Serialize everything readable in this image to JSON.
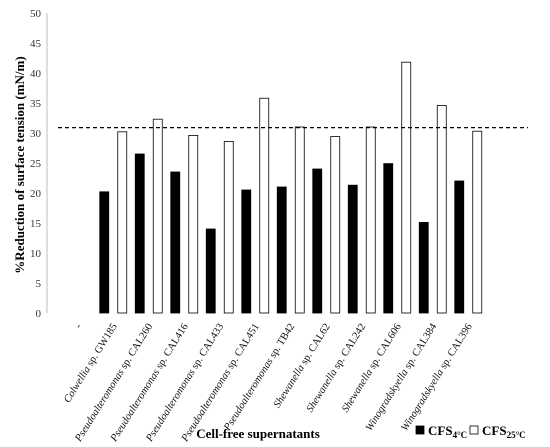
{
  "chart_data": {
    "type": "bar",
    "xlabel": "Cell-free supernatants",
    "ylabel": "%Reduction of surface tension (mN/m)",
    "ylim": [
      0,
      50
    ],
    "yticks": [
      0,
      5,
      10,
      15,
      20,
      25,
      30,
      35,
      40,
      45,
      50
    ],
    "grid": false,
    "legend_position": "bottom-right",
    "reference_line": {
      "value": 30.9,
      "style": "dashed"
    },
    "categories": [
      {
        "first_label": "-",
        "rest": ""
      },
      {
        "first_label": "Colwellia",
        "rest": " sp. GW185"
      },
      {
        "first_label": "Pseudoalteromonas",
        "rest": " sp. CAL260"
      },
      {
        "first_label": "Pseudoalteromonas",
        "rest": " sp. CAL416"
      },
      {
        "first_label": "Pseudoalteromonas",
        "rest": " sp. CAL433"
      },
      {
        "first_label": "Pseudoalteromonas",
        "rest": " sp. CAL451"
      },
      {
        "first_label": "Pseudoalteromonas",
        "rest": " sp. TB42"
      },
      {
        "first_label": "Shewanella",
        "rest": " sp. CAL62"
      },
      {
        "first_label": "Shewanella",
        "rest": " sp. CAL242"
      },
      {
        "first_label": "Shewanella",
        "rest": " sp. CAL606"
      },
      {
        "first_label": "Winogradskyella",
        "rest": " sp. CAL384"
      },
      {
        "first_label": "Winogradskyella",
        "rest": " sp. CAL396"
      }
    ],
    "series": [
      {
        "name_main": "CFS",
        "name_sub": "4°C",
        "fill": "#000000",
        "values": [
          null,
          20.2,
          26.5,
          23.5,
          14.0,
          20.5,
          21.0,
          24.0,
          21.3,
          24.9,
          15.1,
          22.0
        ]
      },
      {
        "name_main": "CFS",
        "name_sub": "25°C",
        "fill": "#ffffff",
        "values": [
          null,
          30.2,
          32.3,
          29.6,
          28.6,
          35.8,
          31.0,
          29.4,
          31.0,
          41.8,
          34.6,
          30.3
        ]
      }
    ]
  }
}
